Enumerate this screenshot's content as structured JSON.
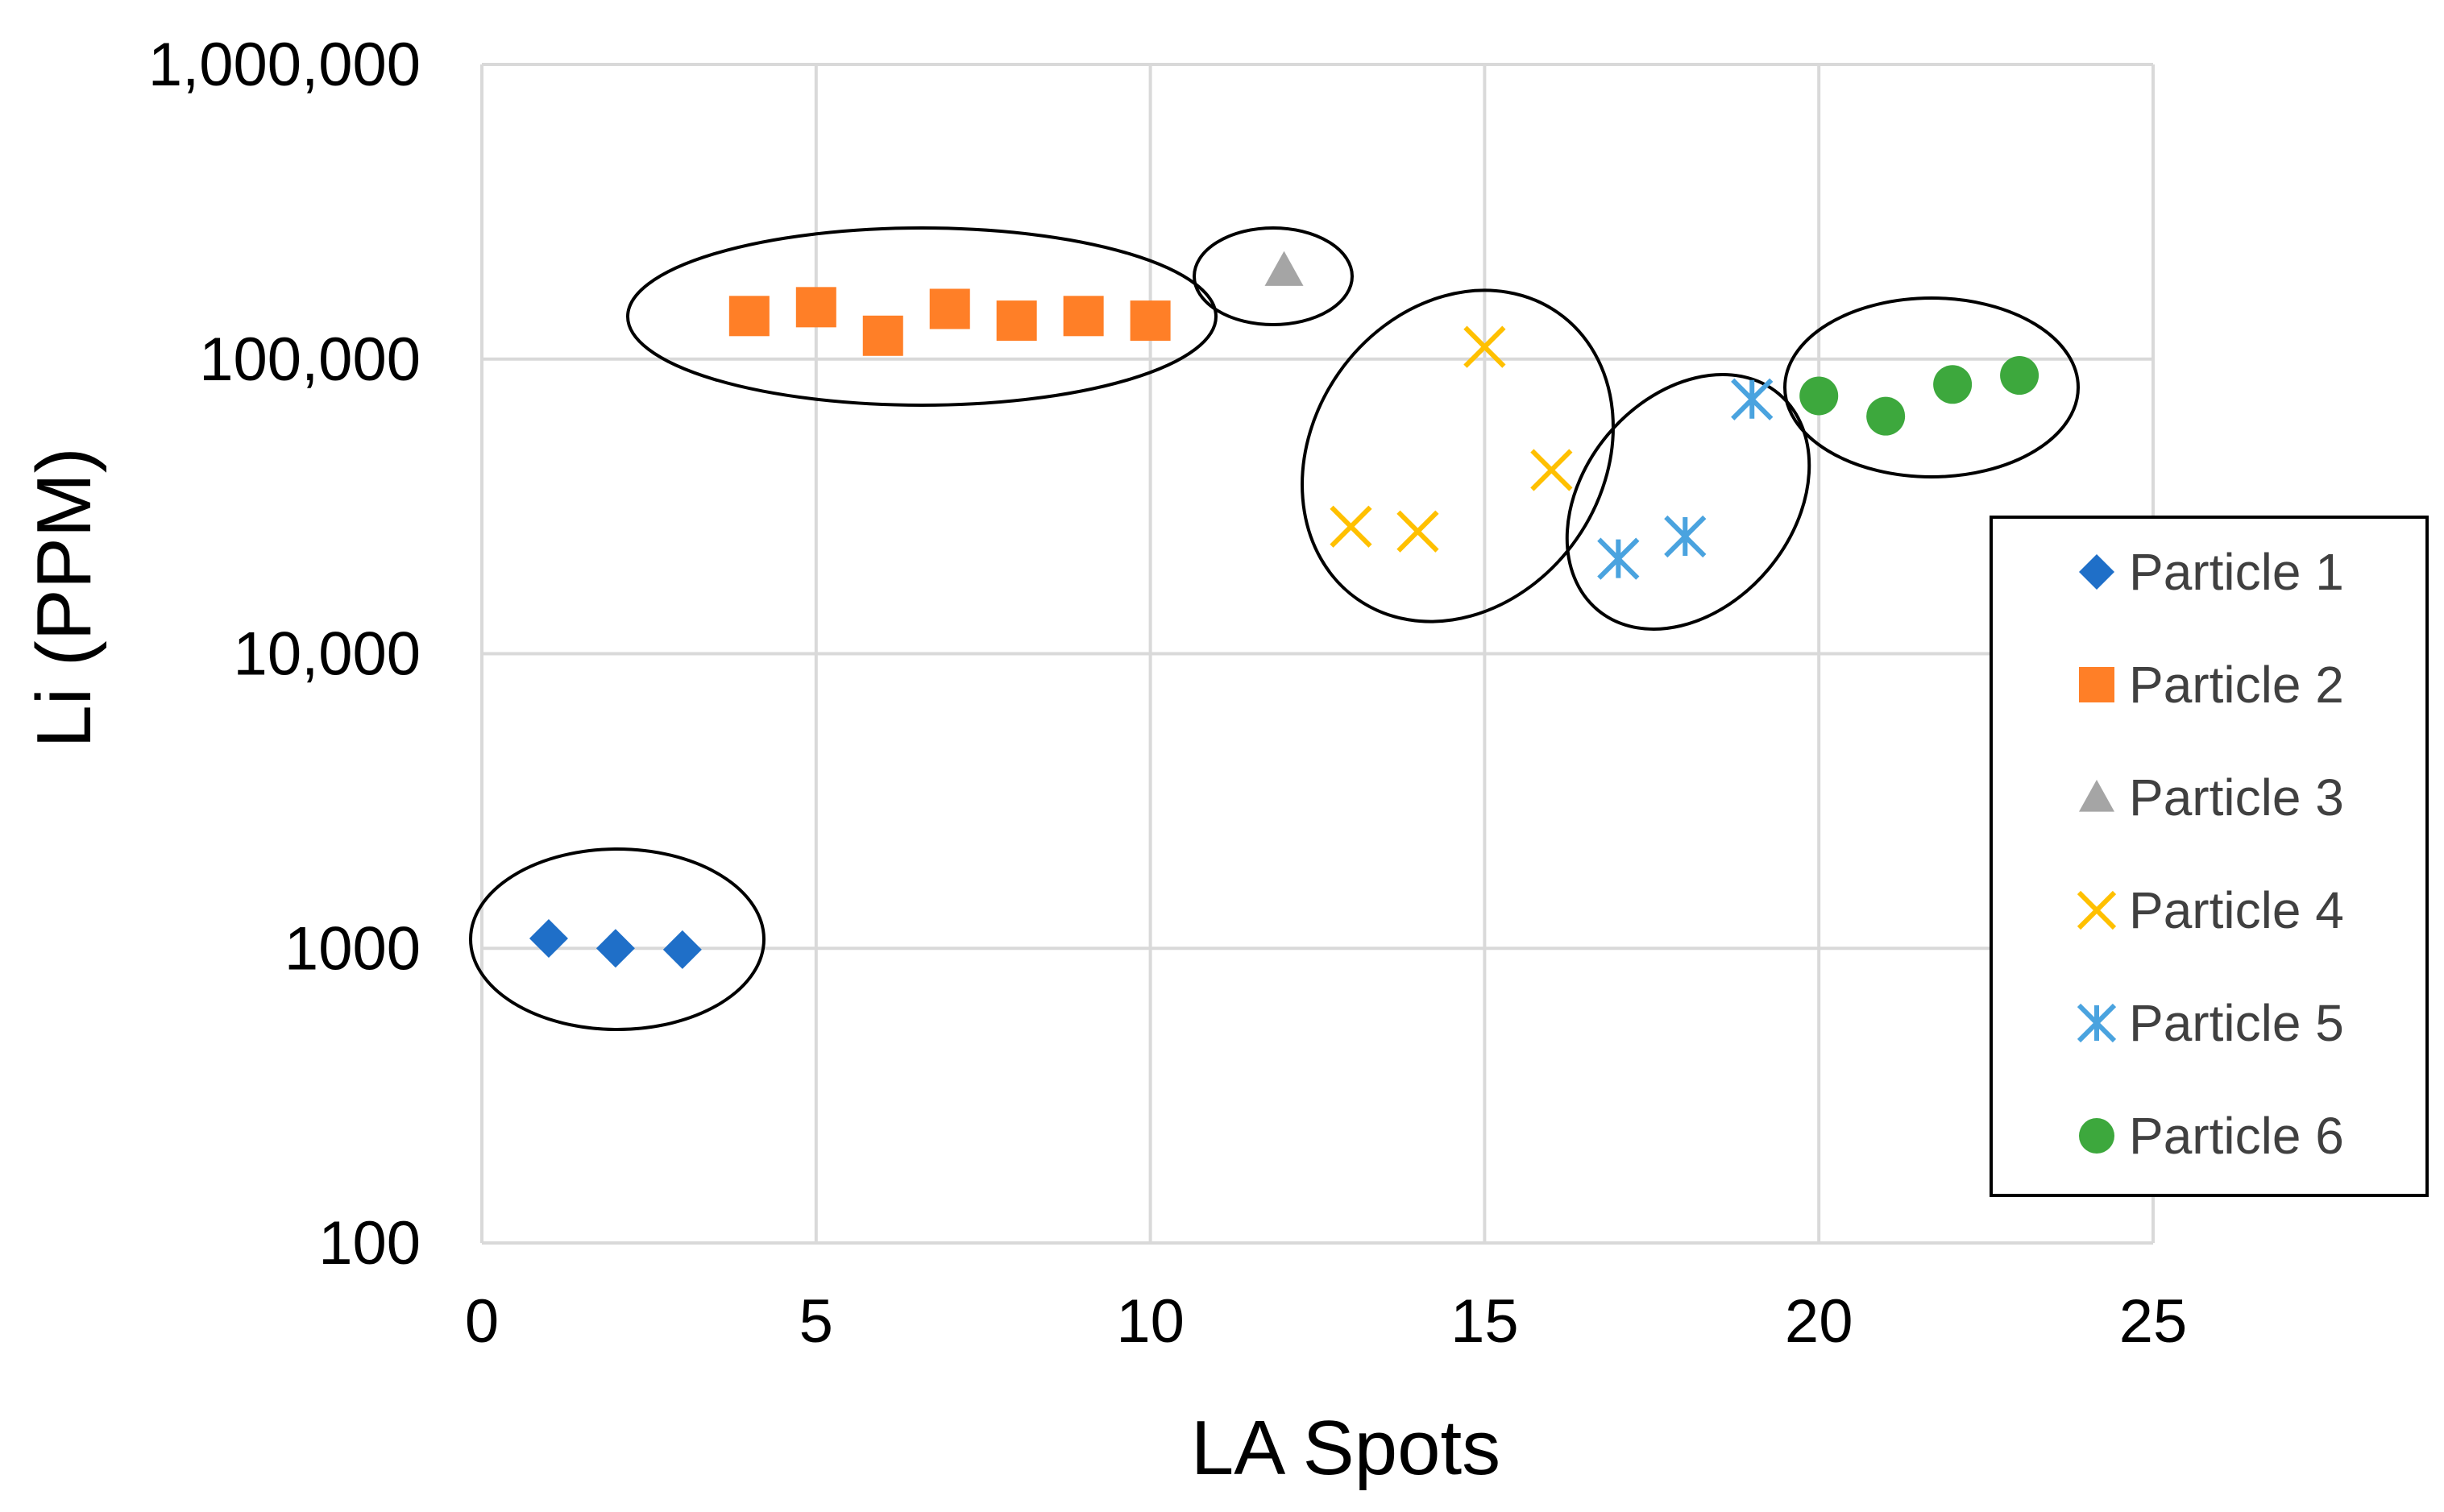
{
  "chart_data": {
    "type": "scatter",
    "title": "",
    "xlabel": "LA Spots",
    "ylabel": "Li (PPM)",
    "xlim": [
      0,
      25
    ],
    "ylim": [
      100,
      1000000
    ],
    "yscale": "log",
    "grid": true,
    "legend_position": "right",
    "xticks": [
      0,
      5,
      10,
      15,
      20,
      25
    ],
    "xtick_labels": [
      "0",
      "5",
      "10",
      "15",
      "20",
      "25"
    ],
    "yticks": [
      100,
      1000,
      10000,
      100000,
      1000000
    ],
    "ytick_labels": [
      "100",
      "1000",
      "10,000",
      "100,000",
      "1,000,000"
    ],
    "series": [
      {
        "name": "Particle 1",
        "marker": "diamond",
        "color": "#1f6fc8",
        "x": [
          1,
          2,
          3
        ],
        "y": [
          1080,
          1000,
          990
        ]
      },
      {
        "name": "Particle 2",
        "marker": "square",
        "color": "#ff7f27",
        "x": [
          4,
          5,
          6,
          7,
          8,
          9,
          10
        ],
        "y": [
          140000,
          150000,
          120000,
          148000,
          135000,
          140000,
          135000
        ]
      },
      {
        "name": "Particle 3",
        "marker": "triangle",
        "color": "#a5a5a5",
        "x": [
          12
        ],
        "y": [
          200000
        ]
      },
      {
        "name": "Particle 4",
        "marker": "x",
        "color": "#ffc000",
        "x": [
          13,
          14,
          15,
          16
        ],
        "y": [
          27000,
          26000,
          110000,
          42000
        ]
      },
      {
        "name": "Particle 5",
        "marker": "asterisk",
        "color": "#4aa3df",
        "x": [
          17,
          18,
          19
        ],
        "y": [
          21000,
          25000,
          73000
        ]
      },
      {
        "name": "Particle 6",
        "marker": "circle",
        "color": "#3da83d",
        "x": [
          20,
          21,
          22,
          23
        ],
        "y": [
          75000,
          64000,
          82000,
          88000
        ]
      }
    ]
  }
}
